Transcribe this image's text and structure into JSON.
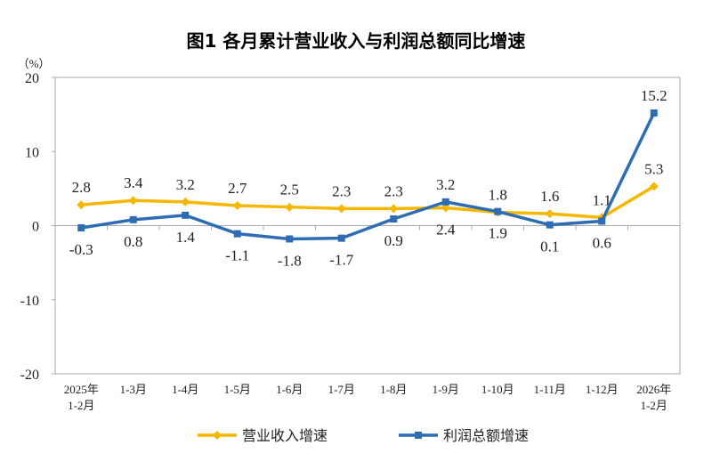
{
  "chart_data": {
    "type": "line",
    "title": "图1  各月累计营业收入与利润总额同比增速",
    "ylabel": "（%）",
    "ylim": [
      -20,
      20
    ],
    "yticks": [
      20,
      10,
      0,
      -10,
      -20
    ],
    "grid": false,
    "legend_position": "bottom",
    "categories": [
      [
        "2025年",
        "1-2月"
      ],
      [
        "1-3月"
      ],
      [
        "1-4月"
      ],
      [
        "1-5月"
      ],
      [
        "1-6月"
      ],
      [
        "1-7月"
      ],
      [
        "1-8月"
      ],
      [
        "1-9月"
      ],
      [
        "1-10月"
      ],
      [
        "1-11月"
      ],
      [
        "1-12月"
      ],
      [
        "2026年",
        "1-2月"
      ]
    ],
    "series": [
      {
        "name": "营业收入增速",
        "color": "#F5B700",
        "marker": "diamond",
        "values": [
          2.8,
          3.4,
          3.2,
          2.7,
          2.5,
          2.3,
          2.3,
          2.4,
          1.8,
          1.6,
          1.1,
          5.3
        ]
      },
      {
        "name": "利润总额增速",
        "color": "#2E6DB4",
        "marker": "square",
        "values": [
          -0.3,
          0.8,
          1.4,
          -1.1,
          -1.8,
          -1.7,
          0.9,
          3.2,
          1.9,
          0.1,
          0.6,
          15.2
        ]
      }
    ]
  }
}
